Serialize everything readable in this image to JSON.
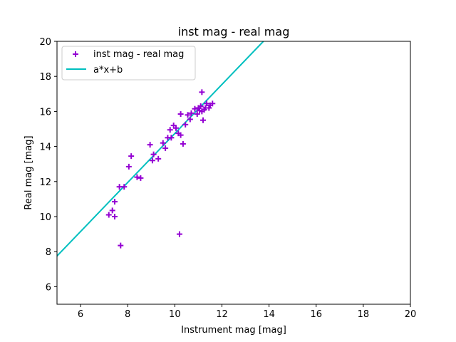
{
  "chart_data": {
    "type": "scatter",
    "title": "inst mag - real mag",
    "xlabel": "Instrument mag [mag]",
    "ylabel": "Real mag [mag]",
    "xlim": [
      5,
      20
    ],
    "ylim": [
      5,
      20
    ],
    "xticks": [
      6,
      8,
      10,
      12,
      14,
      16,
      18,
      20
    ],
    "yticks": [
      6,
      8,
      10,
      12,
      14,
      16,
      18,
      20
    ],
    "grid": false,
    "legend_position": "top-left",
    "series": [
      {
        "name": "inst mag - real mag",
        "kind": "scatter",
        "marker": "plus",
        "color": "#9400d3",
        "points": [
          [
            7.2,
            10.1
          ],
          [
            7.35,
            10.35
          ],
          [
            7.45,
            10.0
          ],
          [
            7.45,
            10.85
          ],
          [
            7.65,
            11.7
          ],
          [
            7.85,
            11.7
          ],
          [
            7.7,
            8.35
          ],
          [
            8.05,
            12.85
          ],
          [
            8.15,
            13.45
          ],
          [
            8.4,
            12.25
          ],
          [
            8.55,
            12.2
          ],
          [
            8.95,
            14.1
          ],
          [
            9.05,
            13.2
          ],
          [
            9.1,
            13.55
          ],
          [
            9.3,
            13.3
          ],
          [
            9.5,
            14.2
          ],
          [
            9.6,
            13.9
          ],
          [
            9.7,
            14.5
          ],
          [
            9.8,
            14.95
          ],
          [
            9.85,
            14.5
          ],
          [
            9.95,
            15.2
          ],
          [
            10.05,
            15.05
          ],
          [
            10.15,
            14.75
          ],
          [
            10.25,
            14.65
          ],
          [
            10.25,
            15.85
          ],
          [
            10.35,
            14.15
          ],
          [
            10.45,
            15.25
          ],
          [
            10.55,
            15.8
          ],
          [
            10.65,
            15.55
          ],
          [
            10.7,
            15.9
          ],
          [
            10.85,
            16.15
          ],
          [
            10.95,
            15.85
          ],
          [
            11.0,
            16.2
          ],
          [
            11.05,
            16.05
          ],
          [
            11.1,
            16.3
          ],
          [
            11.15,
            16.0
          ],
          [
            11.15,
            17.1
          ],
          [
            11.2,
            15.5
          ],
          [
            11.25,
            16.1
          ],
          [
            11.3,
            16.2
          ],
          [
            11.35,
            16.45
          ],
          [
            11.45,
            16.2
          ],
          [
            11.5,
            16.35
          ],
          [
            11.6,
            16.45
          ],
          [
            10.2,
            9.0
          ]
        ]
      },
      {
        "name": "a*x+b",
        "kind": "line",
        "color": "#00bfbf",
        "points": [
          [
            5,
            7.75
          ],
          [
            13.76,
            20
          ]
        ]
      }
    ]
  }
}
